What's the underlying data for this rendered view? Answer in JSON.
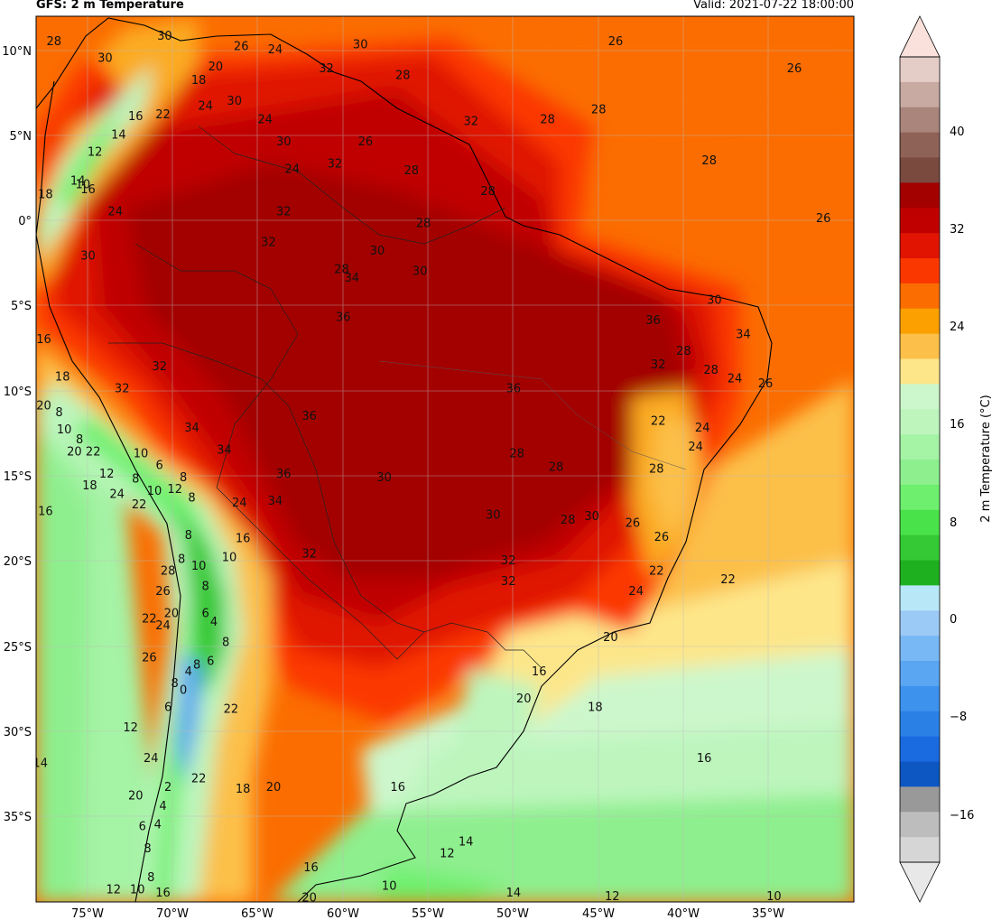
{
  "title": "GFS: 2 m Temperature",
  "valid": "Valid: 2021-07-22 18:00:00",
  "lat_ticks": [
    "10°N",
    "5°N",
    "0°",
    "5°S",
    "10°S",
    "15°S",
    "20°S",
    "25°S",
    "30°S",
    "35°S"
  ],
  "lon_ticks": [
    "75°W",
    "70°W",
    "65°W",
    "60°W",
    "55°W",
    "50°W",
    "45°W",
    "40°W",
    "35°W"
  ],
  "colorbar": {
    "label": "2 m Temperature (°C)",
    "ticks": [
      "40",
      "32",
      "24",
      "16",
      "8",
      "0",
      "−8",
      "−16"
    ],
    "colors": [
      "#e8e8e8",
      "#d6d6d6",
      "#bdbdbd",
      "#999999",
      "#0d57c2",
      "#1a6ae0",
      "#2b80e6",
      "#3d92ee",
      "#5aa6f2",
      "#78b8f5",
      "#9ccaf7",
      "#b8e8f8",
      "#1fb020",
      "#35c935",
      "#4ae24a",
      "#6ef06e",
      "#8eef8e",
      "#a5f3a5",
      "#bdf5bd",
      "#ccf7cc",
      "#fde68a",
      "#fcc04a",
      "#fba000",
      "#fb6d00",
      "#fb3700",
      "#e01400",
      "#c00000",
      "#a30000",
      "#7a4a3f",
      "#8f6257",
      "#aa857c",
      "#c8aaa3",
      "#e5cdc7",
      "#fbe1dc"
    ]
  },
  "contour_labels": [
    {
      "t": "28",
      "lon": -77,
      "lat": 10.5
    },
    {
      "t": "30",
      "lon": -70.5,
      "lat": 10.8
    },
    {
      "t": "26",
      "lon": -66,
      "lat": 10.2
    },
    {
      "t": "20",
      "lon": -67.5,
      "lat": 9
    },
    {
      "t": "24",
      "lon": -64,
      "lat": 10
    },
    {
      "t": "30",
      "lon": -59,
      "lat": 10.3
    },
    {
      "t": "28",
      "lon": -56.5,
      "lat": 8.5
    },
    {
      "t": "26",
      "lon": -44,
      "lat": 10.5
    },
    {
      "t": "26",
      "lon": -33.5,
      "lat": 8.9
    },
    {
      "t": "28",
      "lon": -45,
      "lat": 6.5
    },
    {
      "t": "28",
      "lon": -48,
      "lat": 5.9
    },
    {
      "t": "28",
      "lon": -38.5,
      "lat": 3.5
    },
    {
      "t": "28",
      "lon": -51.5,
      "lat": 1.7
    },
    {
      "t": "26",
      "lon": -31.8,
      "lat": 0.1
    },
    {
      "t": "32",
      "lon": -60.5,
      "lat": 3.3
    },
    {
      "t": "28",
      "lon": -56,
      "lat": 2.9
    },
    {
      "t": "32",
      "lon": -63.5,
      "lat": 0.5
    },
    {
      "t": "28",
      "lon": -55.3,
      "lat": -0.2
    },
    {
      "t": "30",
      "lon": -58,
      "lat": -1.8
    },
    {
      "t": "32",
      "lon": -64.4,
      "lat": -1.3
    },
    {
      "t": "30",
      "lon": -55.5,
      "lat": -3
    },
    {
      "t": "34",
      "lon": -59.5,
      "lat": -3.4
    },
    {
      "t": "28",
      "lon": -60.1,
      "lat": -2.9
    },
    {
      "t": "30",
      "lon": -75,
      "lat": -2.1
    },
    {
      "t": "32",
      "lon": -73,
      "lat": -9.9
    },
    {
      "t": "32",
      "lon": -70.8,
      "lat": -8.6
    },
    {
      "t": "36",
      "lon": -60,
      "lat": -5.7
    },
    {
      "t": "36",
      "lon": -41.8,
      "lat": -5.9
    },
    {
      "t": "30",
      "lon": -38.2,
      "lat": -4.7
    },
    {
      "t": "34",
      "lon": -36.5,
      "lat": -6.7
    },
    {
      "t": "28",
      "lon": -40,
      "lat": -7.7
    },
    {
      "t": "32",
      "lon": -41.5,
      "lat": -8.5
    },
    {
      "t": "28",
      "lon": -38.4,
      "lat": -8.8
    },
    {
      "t": "24",
      "lon": -37,
      "lat": -9.3
    },
    {
      "t": "26",
      "lon": -35.2,
      "lat": -9.6
    },
    {
      "t": "36",
      "lon": -50,
      "lat": -9.9
    },
    {
      "t": "36",
      "lon": -62,
      "lat": -11.5
    },
    {
      "t": "34",
      "lon": -68.9,
      "lat": -12.2
    },
    {
      "t": "22",
      "lon": -41.5,
      "lat": -11.8
    },
    {
      "t": "24",
      "lon": -38.9,
      "lat": -12.2
    },
    {
      "t": "24",
      "lon": -39.3,
      "lat": -13.3
    },
    {
      "t": "28",
      "lon": -41.6,
      "lat": -14.6
    },
    {
      "t": "34",
      "lon": -67,
      "lat": -13.5
    },
    {
      "t": "36",
      "lon": -63.5,
      "lat": -14.9
    },
    {
      "t": "34",
      "lon": -64,
      "lat": -16.5
    },
    {
      "t": "30",
      "lon": -57.6,
      "lat": -15.1
    },
    {
      "t": "28",
      "lon": -49.8,
      "lat": -13.7
    },
    {
      "t": "28",
      "lon": -47.5,
      "lat": -14.5
    },
    {
      "t": "30",
      "lon": -51.2,
      "lat": -17.3
    },
    {
      "t": "28",
      "lon": -46.8,
      "lat": -17.6
    },
    {
      "t": "30",
      "lon": -45.4,
      "lat": -17.4
    },
    {
      "t": "26",
      "lon": -43,
      "lat": -17.8
    },
    {
      "t": "26",
      "lon": -41.3,
      "lat": -18.6
    },
    {
      "t": "32",
      "lon": -50.3,
      "lat": -20
    },
    {
      "t": "32",
      "lon": -50.3,
      "lat": -21.2
    },
    {
      "t": "22",
      "lon": -41.6,
      "lat": -20.6
    },
    {
      "t": "24",
      "lon": -42.8,
      "lat": -21.8
    },
    {
      "t": "22",
      "lon": -37.4,
      "lat": -21.1
    },
    {
      "t": "32",
      "lon": -62,
      "lat": -19.6
    },
    {
      "t": "20",
      "lon": -44.3,
      "lat": -24.5
    },
    {
      "t": "20",
      "lon": -49.4,
      "lat": -28.1
    },
    {
      "t": "16",
      "lon": -48.5,
      "lat": -26.5
    },
    {
      "t": "18",
      "lon": -45.2,
      "lat": -28.6
    },
    {
      "t": "16",
      "lon": -38.8,
      "lat": -31.6
    },
    {
      "t": "16",
      "lon": -56.8,
      "lat": -33.3
    },
    {
      "t": "14",
      "lon": -52.8,
      "lat": -36.5
    },
    {
      "t": "12",
      "lon": -53.9,
      "lat": -37.2
    },
    {
      "t": "10",
      "lon": -57.3,
      "lat": -39.1
    },
    {
      "t": "14",
      "lon": -50,
      "lat": -39.5
    },
    {
      "t": "12",
      "lon": -44.2,
      "lat": -39.7
    },
    {
      "t": "10",
      "lon": -34.7,
      "lat": -39.7
    },
    {
      "t": "16",
      "lon": -61.9,
      "lat": -38
    },
    {
      "t": "14",
      "lon": -77.8,
      "lat": -31.9
    },
    {
      "t": "16",
      "lon": -77.6,
      "lat": -7
    },
    {
      "t": "18",
      "lon": -76.5,
      "lat": -9.2
    },
    {
      "t": "20",
      "lon": -77.6,
      "lat": -10.9
    },
    {
      "t": "8",
      "lon": -76.7,
      "lat": -11.3
    },
    {
      "t": "10",
      "lon": -76.4,
      "lat": -12.3
    },
    {
      "t": "8",
      "lon": -75.5,
      "lat": -12.9
    },
    {
      "t": "20",
      "lon": -75.8,
      "lat": -13.6
    },
    {
      "t": "22",
      "lon": -74.7,
      "lat": -13.6
    },
    {
      "t": "12",
      "lon": -73.9,
      "lat": -14.9
    },
    {
      "t": "18",
      "lon": -74.9,
      "lat": -15.6
    },
    {
      "t": "24",
      "lon": -73.3,
      "lat": -16.1
    },
    {
      "t": "22",
      "lon": -72,
      "lat": -16.7
    },
    {
      "t": "16",
      "lon": -77.5,
      "lat": -17.1
    },
    {
      "t": "10",
      "lon": -71.9,
      "lat": -13.7
    },
    {
      "t": "8",
      "lon": -72.2,
      "lat": -15.2
    },
    {
      "t": "10",
      "lon": -71.1,
      "lat": -15.9
    },
    {
      "t": "6",
      "lon": -70.8,
      "lat": -14.4
    },
    {
      "t": "12",
      "lon": -69.9,
      "lat": -15.8
    },
    {
      "t": "8",
      "lon": -69.4,
      "lat": -15.1
    },
    {
      "t": "8",
      "lon": -68.9,
      "lat": -16.3
    },
    {
      "t": "24",
      "lon": -66.1,
      "lat": -16.6
    },
    {
      "t": "16",
      "lon": -65.9,
      "lat": -18.7
    },
    {
      "t": "10",
      "lon": -66.7,
      "lat": -19.8
    },
    {
      "t": "8",
      "lon": -69.1,
      "lat": -18.5
    },
    {
      "t": "8",
      "lon": -69.5,
      "lat": -19.9
    },
    {
      "t": "10",
      "lon": -68.5,
      "lat": -20.3
    },
    {
      "t": "8",
      "lon": -68.1,
      "lat": -21.5
    },
    {
      "t": "28",
      "lon": -70.3,
      "lat": -20.6
    },
    {
      "t": "26",
      "lon": -70.6,
      "lat": -21.8
    },
    {
      "t": "22",
      "lon": -71.4,
      "lat": -23.4
    },
    {
      "t": "24",
      "lon": -70.6,
      "lat": -23.8
    },
    {
      "t": "20",
      "lon": -70.1,
      "lat": -23.1
    },
    {
      "t": "4",
      "lon": -67.6,
      "lat": -23.6
    },
    {
      "t": "6",
      "lon": -68.1,
      "lat": -23.1
    },
    {
      "t": "8",
      "lon": -66.9,
      "lat": -24.8
    },
    {
      "t": "26",
      "lon": -71.4,
      "lat": -25.7
    },
    {
      "t": "8",
      "lon": -68.6,
      "lat": -26.1
    },
    {
      "t": "4",
      "lon": -69.1,
      "lat": -26.5
    },
    {
      "t": "6",
      "lon": -67.8,
      "lat": -25.9
    },
    {
      "t": "8",
      "lon": -69.9,
      "lat": -27.2
    },
    {
      "t": "0",
      "lon": -69.4,
      "lat": -27.6
    },
    {
      "t": "6",
      "lon": -70.3,
      "lat": -28.6
    },
    {
      "t": "22",
      "lon": -66.6,
      "lat": -28.7
    },
    {
      "t": "12",
      "lon": -72.5,
      "lat": -29.8
    },
    {
      "t": "24",
      "lon": -71.3,
      "lat": -31.6
    },
    {
      "t": "20",
      "lon": -72.2,
      "lat": -33.8
    },
    {
      "t": "22",
      "lon": -68.5,
      "lat": -32.8
    },
    {
      "t": "18",
      "lon": -65.9,
      "lat": -33.4
    },
    {
      "t": "20",
      "lon": -64.1,
      "lat": -33.3
    },
    {
      "t": "2",
      "lon": -70.3,
      "lat": -33.3
    },
    {
      "t": "4",
      "lon": -70.6,
      "lat": -34.4
    },
    {
      "t": "4",
      "lon": -70.9,
      "lat": -35.5
    },
    {
      "t": "6",
      "lon": -71.8,
      "lat": -35.6
    },
    {
      "t": "8",
      "lon": -71.5,
      "lat": -36.9
    },
    {
      "t": "8",
      "lon": -71.3,
      "lat": -38.6
    },
    {
      "t": "10",
      "lon": -72.1,
      "lat": -39.3
    },
    {
      "t": "16",
      "lon": -70.6,
      "lat": -39.5
    },
    {
      "t": "12",
      "lon": -73.5,
      "lat": -39.3
    },
    {
      "t": "20",
      "lon": -62,
      "lat": -39.8
    },
    {
      "t": "10",
      "lon": -75.3,
      "lat": 2.1
    },
    {
      "t": "14",
      "lon": -75.6,
      "lat": 2.3
    },
    {
      "t": "18",
      "lon": -77.5,
      "lat": 1.5
    },
    {
      "t": "16",
      "lon": -75,
      "lat": 1.8
    },
    {
      "t": "24",
      "lon": -73.4,
      "lat": 0.5
    },
    {
      "t": "12",
      "lon": -74.6,
      "lat": 4
    },
    {
      "t": "14",
      "lon": -73.2,
      "lat": 5
    },
    {
      "t": "16",
      "lon": -72.2,
      "lat": 6.1
    },
    {
      "t": "22",
      "lon": -70.6,
      "lat": 6.2
    },
    {
      "t": "24",
      "lon": -68.1,
      "lat": 6.7
    },
    {
      "t": "18",
      "lon": -68.5,
      "lat": 8.2
    },
    {
      "t": "30",
      "lon": -66.4,
      "lat": 7
    },
    {
      "t": "24",
      "lon": -64.6,
      "lat": 5.9
    },
    {
      "t": "30",
      "lon": -63.5,
      "lat": 4.6
    },
    {
      "t": "24",
      "lon": -63,
      "lat": 3
    },
    {
      "t": "26",
      "lon": -58.7,
      "lat": 4.6
    },
    {
      "t": "32",
      "lon": -61,
      "lat": 8.9
    },
    {
      "t": "32",
      "lon": -52.5,
      "lat": 5.8
    },
    {
      "t": "30",
      "lon": -74,
      "lat": 9.5
    }
  ]
}
